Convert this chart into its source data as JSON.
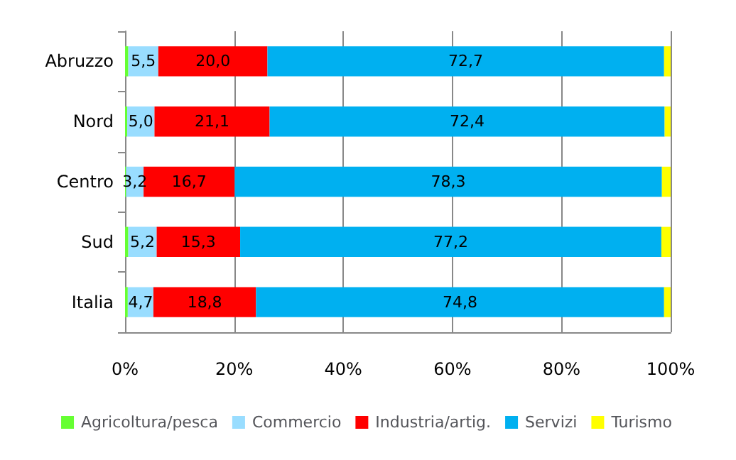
{
  "chart_data": {
    "type": "bar",
    "orientation": "horizontal",
    "stacked": true,
    "categories": [
      "Abruzzo",
      "Nord",
      "Centro",
      "Sud",
      "Italia"
    ],
    "series": [
      {
        "name": "Agricoltura/pesca",
        "color": "#66ff33",
        "values": [
          0.6,
          0.4,
          0.2,
          0.6,
          0.5
        ]
      },
      {
        "name": "Commercio",
        "color": "#99ddff",
        "values": [
          5.5,
          5.0,
          3.2,
          5.2,
          4.7
        ],
        "value_labels": [
          "5,5",
          "5,0",
          "3,2",
          "5,2",
          "4,7"
        ]
      },
      {
        "name": "Industria/artig.",
        "color": "#ff0000",
        "values": [
          20.0,
          21.1,
          16.7,
          15.3,
          18.8
        ],
        "value_labels": [
          "20,0",
          "21,1",
          "16,7",
          "15,3",
          "18,8"
        ]
      },
      {
        "name": "Servizi",
        "color": "#00b0f0",
        "values": [
          72.7,
          72.4,
          78.3,
          77.2,
          74.8
        ],
        "value_labels": [
          "72,7",
          "72,4",
          "78,3",
          "77,2",
          "74,8"
        ]
      },
      {
        "name": "Turismo",
        "color": "#ffff00",
        "values": [
          1.2,
          1.1,
          1.6,
          1.7,
          1.2
        ]
      }
    ],
    "xlim": [
      0,
      100
    ],
    "xticks": [
      {
        "value": 0,
        "label": "0%"
      },
      {
        "value": 20,
        "label": "20%"
      },
      {
        "value": 40,
        "label": "40%"
      },
      {
        "value": 60,
        "label": "60%"
      },
      {
        "value": 80,
        "label": "80%"
      },
      {
        "value": 100,
        "label": "100%"
      }
    ],
    "grid": "x",
    "legend": "bottom"
  }
}
